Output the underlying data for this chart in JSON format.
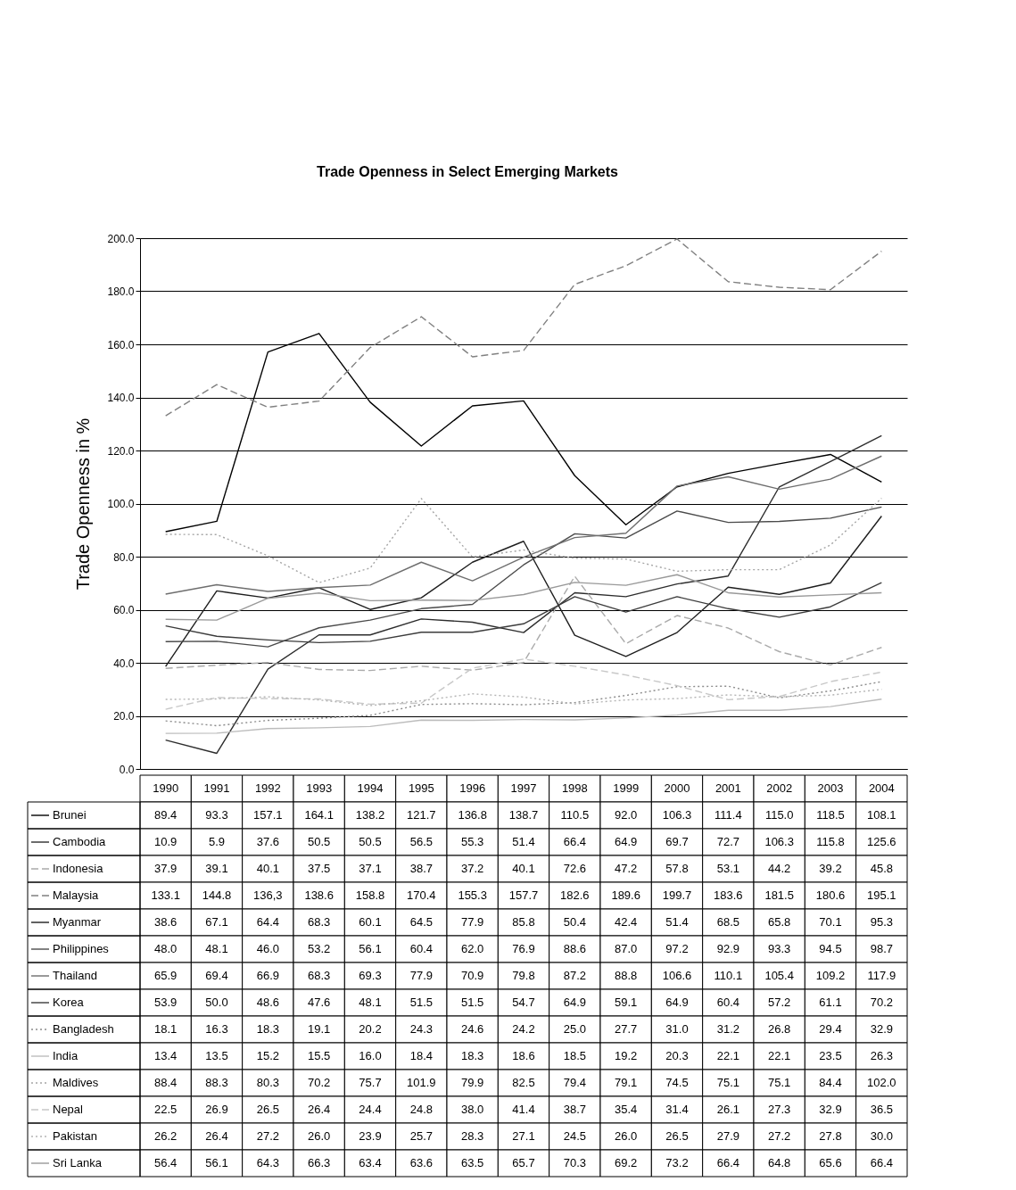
{
  "chart_data": {
    "type": "line",
    "title": "Trade Openness in Select Emerging Markets",
    "ylabel": "Trade Openness in %",
    "categories": [
      "1990",
      "1991",
      "1992",
      "1993",
      "1994",
      "1995",
      "1996",
      "1997",
      "1998",
      "1999",
      "2000",
      "2001",
      "2002",
      "2003",
      "2004"
    ],
    "ylim": [
      0,
      200
    ],
    "yticks": [
      {
        "value": 0,
        "label": "0.0"
      },
      {
        "value": 20,
        "label": "20.0"
      },
      {
        "value": 40,
        "label": "40.0"
      },
      {
        "value": 60,
        "label": "60.0"
      },
      {
        "value": 80,
        "label": "80.0"
      },
      {
        "value": 100,
        "label": "100.0"
      },
      {
        "value": 120,
        "label": "120.0"
      },
      {
        "value": 140,
        "label": "140.0"
      },
      {
        "value": 160,
        "label": "160.0"
      },
      {
        "value": 180,
        "label": "180.0"
      },
      {
        "value": 200,
        "label": "200.0"
      }
    ],
    "grid": "y",
    "legend": "bottom",
    "tick_labels": "y",
    "series": [
      {
        "name": "Brunei",
        "color": "#000000",
        "line_style": "solid",
        "values": [
          89.4,
          93.3,
          157.1,
          164.1,
          138.2,
          121.7,
          136.8,
          138.7,
          110.5,
          92.0,
          106.3,
          111.4,
          115.0,
          118.5,
          108.1
        ],
        "value_labels": [
          "89.4",
          "93.3",
          "157.1",
          "164.1",
          "138.2",
          "121.7",
          "136.8",
          "138.7",
          "110.5",
          "92.0",
          "106.3",
          "111.4",
          "115.0",
          "118.5",
          "108.1"
        ]
      },
      {
        "name": "Cambodia",
        "color": "#2d2d2d",
        "line_style": "solid",
        "values": [
          10.9,
          5.9,
          37.6,
          50.5,
          50.5,
          56.5,
          55.3,
          51.4,
          66.4,
          64.9,
          69.7,
          72.7,
          106.3,
          115.8,
          125.6
        ],
        "value_labels": [
          "10.9",
          "5.9",
          "37.6",
          "50.5",
          "50.5",
          "56.5",
          "55.3",
          "51.4",
          "66.4",
          "64.9",
          "69.7",
          "72.7",
          "106.3",
          "115.8",
          "125.6"
        ]
      },
      {
        "name": "Indonesia",
        "color": "#aaaaaa",
        "line_style": "dashed",
        "values": [
          37.9,
          39.1,
          40.1,
          37.5,
          37.1,
          38.7,
          37.2,
          40.1,
          72.6,
          47.2,
          57.8,
          53.1,
          44.2,
          39.2,
          45.8
        ],
        "value_labels": [
          "37.9",
          "39.1",
          "40.1",
          "37.5",
          "37.1",
          "38.7",
          "37.2",
          "40.1",
          "72.6",
          "47.2",
          "57.8",
          "53.1",
          "44.2",
          "39.2",
          "45.8"
        ]
      },
      {
        "name": "Malaysia",
        "color": "#808080",
        "line_style": "dashed",
        "values": [
          133.1,
          144.8,
          136.3,
          138.6,
          158.8,
          170.4,
          155.3,
          157.7,
          182.6,
          189.6,
          199.7,
          183.6,
          181.5,
          180.6,
          195.1
        ],
        "value_labels": [
          "133.1",
          "144.8",
          "136,3",
          "138.6",
          "158.8",
          "170.4",
          "155.3",
          "157.7",
          "182.6",
          "189.6",
          "199.7",
          "183.6",
          "181.5",
          "180.6",
          "195.1"
        ]
      },
      {
        "name": "Myanmar",
        "color": "#1e1e1e",
        "line_style": "solid",
        "values": [
          38.6,
          67.1,
          64.4,
          68.3,
          60.1,
          64.5,
          77.9,
          85.8,
          50.4,
          42.4,
          51.4,
          68.5,
          65.8,
          70.1,
          95.3
        ],
        "value_labels": [
          "38.6",
          "67.1",
          "64.4",
          "68.3",
          "60.1",
          "64.5",
          "77.9",
          "85.8",
          "50.4",
          "42.4",
          "51.4",
          "68.5",
          "65.8",
          "70.1",
          "95.3"
        ]
      },
      {
        "name": "Philippines",
        "color": "#4b4b4b",
        "line_style": "solid",
        "values": [
          48.0,
          48.1,
          46.0,
          53.2,
          56.1,
          60.4,
          62.0,
          76.9,
          88.6,
          87.0,
          97.2,
          92.9,
          93.3,
          94.5,
          98.7
        ],
        "value_labels": [
          "48.0",
          "48.1",
          "46.0",
          "53.2",
          "56.1",
          "60.4",
          "62.0",
          "76.9",
          "88.6",
          "87.0",
          "97.2",
          "92.9",
          "93.3",
          "94.5",
          "98.7"
        ]
      },
      {
        "name": "Thailand",
        "color": "#6e6e6e",
        "line_style": "solid",
        "values": [
          65.9,
          69.4,
          66.9,
          68.3,
          69.3,
          77.9,
          70.9,
          79.8,
          87.2,
          88.8,
          106.6,
          110.1,
          105.4,
          109.2,
          117.9
        ],
        "value_labels": [
          "65.9",
          "69.4",
          "66.9",
          "68.3",
          "69.3",
          "77.9",
          "70.9",
          "79.8",
          "87.2",
          "88.8",
          "106.6",
          "110.1",
          "105.4",
          "109.2",
          "117.9"
        ]
      },
      {
        "name": "Korea",
        "color": "#3c3c3c",
        "line_style": "solid",
        "values": [
          53.9,
          50.0,
          48.6,
          47.6,
          48.1,
          51.5,
          51.5,
          54.7,
          64.9,
          59.1,
          64.9,
          60.4,
          57.2,
          61.1,
          70.2
        ],
        "value_labels": [
          "53.9",
          "50.0",
          "48.6",
          "47.6",
          "48.1",
          "51.5",
          "51.5",
          "54.7",
          "64.9",
          "59.1",
          "64.9",
          "60.4",
          "57.2",
          "61.1",
          "70.2"
        ]
      },
      {
        "name": "Bangladesh",
        "color": "#8c8c8c",
        "line_style": "dotted",
        "values": [
          18.1,
          16.3,
          18.3,
          19.1,
          20.2,
          24.3,
          24.6,
          24.2,
          25.0,
          27.7,
          31.0,
          31.2,
          26.8,
          29.4,
          32.9
        ],
        "value_labels": [
          "18.1",
          "16.3",
          "18.3",
          "19.1",
          "20.2",
          "24.3",
          "24.6",
          "24.2",
          "25.0",
          "27.7",
          "31.0",
          "31.2",
          "26.8",
          "29.4",
          "32.9"
        ]
      },
      {
        "name": "India",
        "color": "#bcbcbc",
        "line_style": "solid",
        "values": [
          13.4,
          13.5,
          15.2,
          15.5,
          16.0,
          18.4,
          18.3,
          18.6,
          18.5,
          19.2,
          20.3,
          22.1,
          22.1,
          23.5,
          26.3
        ],
        "value_labels": [
          "13.4",
          "13.5",
          "15.2",
          "15.5",
          "16.0",
          "18.4",
          "18.3",
          "18.6",
          "18.5",
          "19.2",
          "20.3",
          "22.1",
          "22.1",
          "23.5",
          "26.3"
        ]
      },
      {
        "name": "Maldives",
        "color": "#a5a5a5",
        "line_style": "dotted",
        "values": [
          88.4,
          88.3,
          80.3,
          70.2,
          75.7,
          101.9,
          79.9,
          82.5,
          79.4,
          79.1,
          74.5,
          75.1,
          75.1,
          84.4,
          102.0
        ],
        "value_labels": [
          "88.4",
          "88.3",
          "80.3",
          "70.2",
          "75.7",
          "101.9",
          "79.9",
          "82.5",
          "79.4",
          "79.1",
          "74.5",
          "75.1",
          "75.1",
          "84.4",
          "102.0"
        ]
      },
      {
        "name": "Nepal",
        "color": "#c8c8c8",
        "line_style": "dashed",
        "values": [
          22.5,
          26.9,
          26.5,
          26.4,
          24.4,
          24.8,
          38.0,
          41.4,
          38.7,
          35.4,
          31.4,
          26.1,
          27.3,
          32.9,
          36.5
        ],
        "value_labels": [
          "22.5",
          "26.9",
          "26.5",
          "26.4",
          "24.4",
          "24.8",
          "38.0",
          "41.4",
          "38.7",
          "35.4",
          "31.4",
          "26.1",
          "27.3",
          "32.9",
          "36.5"
        ]
      },
      {
        "name": "Pakistan",
        "color": "#b4b4b4",
        "line_style": "dotted",
        "values": [
          26.2,
          26.4,
          27.2,
          26.0,
          23.9,
          25.7,
          28.3,
          27.1,
          24.5,
          26.0,
          26.5,
          27.9,
          27.2,
          27.8,
          30.0
        ],
        "value_labels": [
          "26.2",
          "26.4",
          "27.2",
          "26.0",
          "23.9",
          "25.7",
          "28.3",
          "27.1",
          "24.5",
          "26.0",
          "26.5",
          "27.9",
          "27.2",
          "27.8",
          "30.0"
        ]
      },
      {
        "name": "Sri Lanka",
        "color": "#999999",
        "line_style": "solid",
        "values": [
          56.4,
          56.1,
          64.3,
          66.3,
          63.4,
          63.6,
          63.5,
          65.7,
          70.3,
          69.2,
          73.2,
          66.4,
          64.8,
          65.6,
          66.4
        ],
        "value_labels": [
          "56.4",
          "56.1",
          "64.3",
          "66.3",
          "63.4",
          "63.6",
          "63.5",
          "65.7",
          "70.3",
          "69.2",
          "73.2",
          "66.4",
          "64.8",
          "65.6",
          "66.4"
        ]
      }
    ]
  }
}
